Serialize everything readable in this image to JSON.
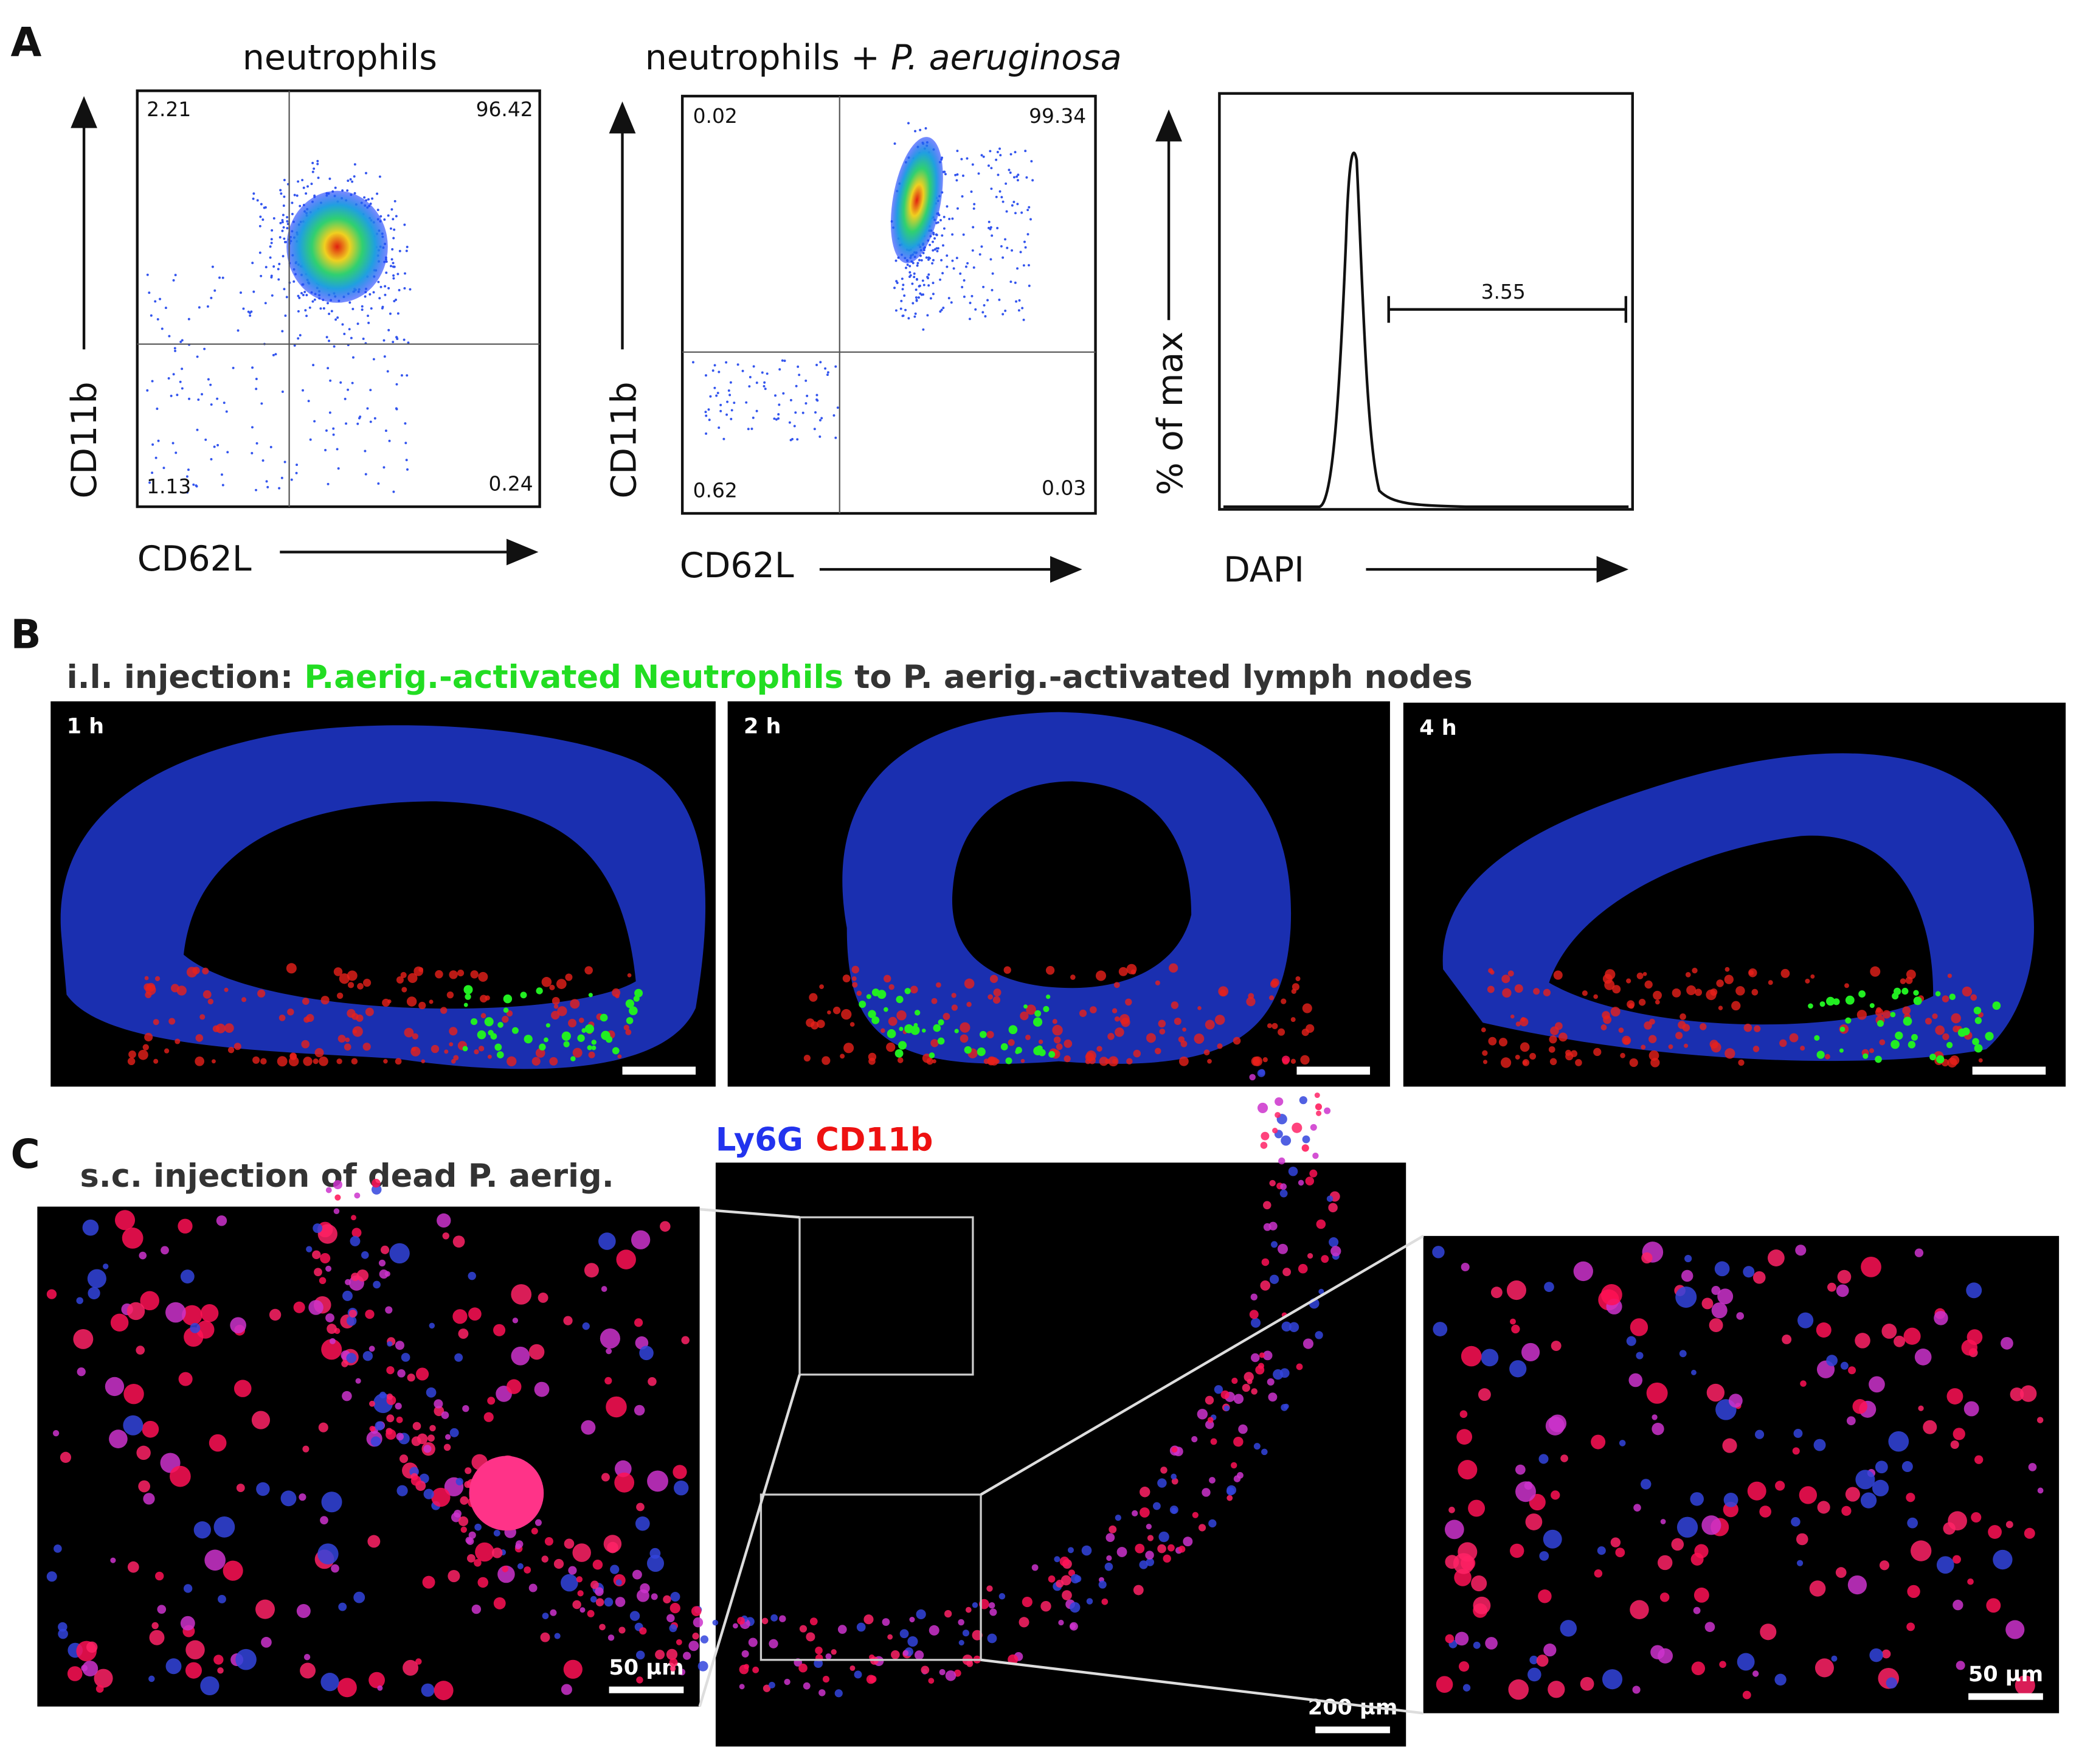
{
  "panel_a": {
    "label": "A",
    "plots": [
      {
        "title": "neutrophils",
        "x_label": "CD62L",
        "y_label": "CD11b",
        "quadrants": [
          "2.21",
          "96.42",
          "1.13",
          "0.24"
        ]
      },
      {
        "title": "neutrophils + ",
        "title_italic": "P. aeruginosa",
        "x_label": "CD62L",
        "y_label": "CD11b",
        "quadrants": [
          "0.02",
          "99.34",
          "0.62",
          "0.03"
        ]
      },
      {
        "x_label": "DAPI",
        "y_label": "% of max",
        "gate": "3.55"
      }
    ]
  },
  "panel_b": {
    "label": "B",
    "heading": [
      "i.l. injection: ",
      "P.aerig.-activated Neutrophils",
      " to P. aerig.-activated lymph nodes"
    ],
    "times": [
      "1 h",
      "2 h",
      "4 h"
    ]
  },
  "panel_c": {
    "label": "C",
    "heading": "s.c. injection of dead P. aerig.",
    "legend": [
      "Ly6G",
      "CD11b"
    ],
    "scale_bars": [
      "50 µm",
      "200 µm",
      "50 µm"
    ]
  }
}
